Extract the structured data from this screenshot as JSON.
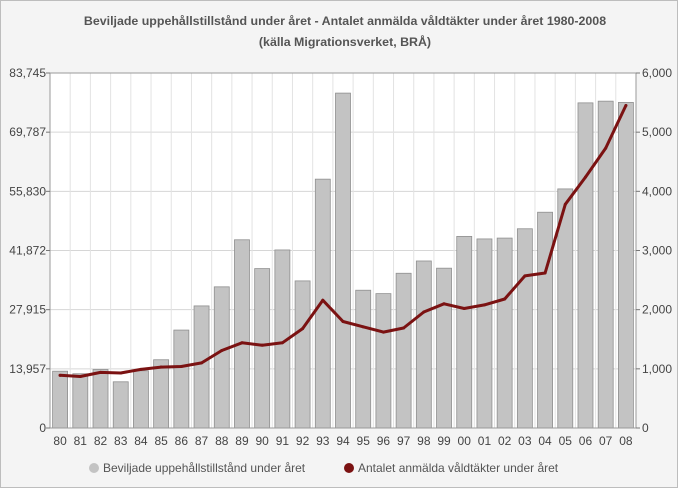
{
  "chart_data": {
    "type": "bar+line",
    "title_line1": "Beviljade uppehållstillstånd under året - Antalet anmälda våldtäkter under året 1980-2008",
    "title_line2": "(källa Migrationsverket, BRÅ)",
    "categories": [
      "80",
      "81",
      "82",
      "83",
      "84",
      "85",
      "86",
      "87",
      "88",
      "89",
      "90",
      "91",
      "92",
      "93",
      "94",
      "95",
      "96",
      "97",
      "98",
      "99",
      "00",
      "01",
      "02",
      "03",
      "04",
      "05",
      "06",
      "07",
      "08"
    ],
    "left_axis": {
      "ylim": [
        0,
        83745
      ],
      "ticks": [
        0,
        13957,
        27915,
        41872,
        55830,
        69787,
        83745
      ],
      "tick_labels": [
        "0",
        "13,957",
        "27,915",
        "41,872",
        "55,830",
        "69,787",
        "83,745"
      ]
    },
    "right_axis": {
      "ylim": [
        0,
        6000
      ],
      "ticks": [
        0,
        1000,
        2000,
        3000,
        4000,
        5000,
        6000
      ],
      "tick_labels": [
        "0",
        "1,000",
        "2,000",
        "3,000",
        "4,000",
        "5,000",
        "6,000"
      ]
    },
    "grid": true,
    "series": [
      {
        "name": "Beviljade uppehållstillstånd under året",
        "type": "bar",
        "axis": "left",
        "color": "#c3c3c3",
        "values": [
          13400,
          12800,
          13800,
          10900,
          13500,
          16100,
          23100,
          28800,
          33300,
          44400,
          37600,
          42000,
          34700,
          58700,
          79000,
          32500,
          31700,
          36500,
          39400,
          37700,
          45200,
          44600,
          44800,
          47000,
          50900,
          56400,
          76700,
          77100,
          76800
        ]
      },
      {
        "name": "Antalet anmälda våldtäkter under året",
        "type": "line",
        "axis": "right",
        "color": "#7b1212",
        "values": [
          890,
          870,
          940,
          930,
          990,
          1030,
          1040,
          1100,
          1310,
          1440,
          1400,
          1440,
          1680,
          2160,
          1800,
          1710,
          1620,
          1690,
          1960,
          2100,
          2020,
          2080,
          2180,
          2570,
          2620,
          3780,
          4240,
          4730,
          5450
        ]
      }
    ]
  }
}
